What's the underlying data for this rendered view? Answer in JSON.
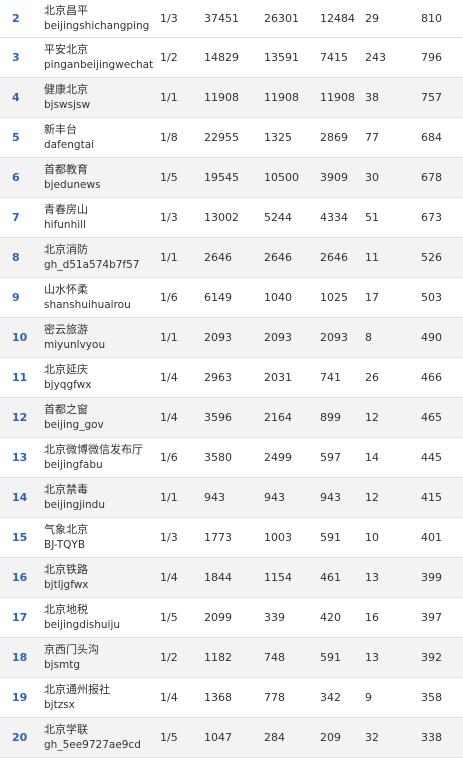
{
  "rows": [
    {
      "rank": "2",
      "name": "北京昌平",
      "id": "beijingshichangping",
      "ratio": "1/3",
      "total_reads": "37451",
      "headline_reads": "26301",
      "avg_reads": "12484",
      "likes": "29",
      "index": "810"
    },
    {
      "rank": "3",
      "name": "平安北京",
      "id": "pinganbeijingwechat",
      "ratio": "1/2",
      "total_reads": "14829",
      "headline_reads": "13591",
      "avg_reads": "7415",
      "likes": "243",
      "index": "796"
    },
    {
      "rank": "4",
      "name": "健康北京",
      "id": "bjswsjsw",
      "ratio": "1/1",
      "total_reads": "11908",
      "headline_reads": "11908",
      "avg_reads": "11908",
      "likes": "38",
      "index": "757"
    },
    {
      "rank": "5",
      "name": "新丰台",
      "id": "dafengtai",
      "ratio": "1/8",
      "total_reads": "22955",
      "headline_reads": "1325",
      "avg_reads": "2869",
      "likes": "77",
      "index": "684"
    },
    {
      "rank": "6",
      "name": "首都教育",
      "id": "bjedunews",
      "ratio": "1/5",
      "total_reads": "19545",
      "headline_reads": "10500",
      "avg_reads": "3909",
      "likes": "30",
      "index": "678"
    },
    {
      "rank": "7",
      "name": "青春房山",
      "id": "hifunhill",
      "ratio": "1/3",
      "total_reads": "13002",
      "headline_reads": "5244",
      "avg_reads": "4334",
      "likes": "51",
      "index": "673"
    },
    {
      "rank": "8",
      "name": "北京消防",
      "id": "gh_d51a574b7f57",
      "ratio": "1/1",
      "total_reads": "2646",
      "headline_reads": "2646",
      "avg_reads": "2646",
      "likes": "11",
      "index": "526"
    },
    {
      "rank": "9",
      "name": "山水怀柔",
      "id": "shanshuihuairou",
      "ratio": "1/6",
      "total_reads": "6149",
      "headline_reads": "1040",
      "avg_reads": "1025",
      "likes": "17",
      "index": "503"
    },
    {
      "rank": "10",
      "name": "密云旅游",
      "id": "miyunlvyou",
      "ratio": "1/1",
      "total_reads": "2093",
      "headline_reads": "2093",
      "avg_reads": "2093",
      "likes": "8",
      "index": "490"
    },
    {
      "rank": "11",
      "name": "北京延庆",
      "id": "bjyqgfwx",
      "ratio": "1/4",
      "total_reads": "2963",
      "headline_reads": "2031",
      "avg_reads": "741",
      "likes": "26",
      "index": "466"
    },
    {
      "rank": "12",
      "name": "首都之窗",
      "id": "beijing_gov",
      "ratio": "1/4",
      "total_reads": "3596",
      "headline_reads": "2164",
      "avg_reads": "899",
      "likes": "12",
      "index": "465"
    },
    {
      "rank": "13",
      "name": "北京微博微信发布厅",
      "id": "beijingfabu",
      "ratio": "1/6",
      "total_reads": "3580",
      "headline_reads": "2499",
      "avg_reads": "597",
      "likes": "14",
      "index": "445"
    },
    {
      "rank": "14",
      "name": "北京禁毒",
      "id": "beijingjindu",
      "ratio": "1/1",
      "total_reads": "943",
      "headline_reads": "943",
      "avg_reads": "943",
      "likes": "12",
      "index": "415"
    },
    {
      "rank": "15",
      "name": "气象北京",
      "id": "BJ-TQYB",
      "ratio": "1/3",
      "total_reads": "1773",
      "headline_reads": "1003",
      "avg_reads": "591",
      "likes": "10",
      "index": "401"
    },
    {
      "rank": "16",
      "name": "北京铁路",
      "id": "bjtljgfwx",
      "ratio": "1/4",
      "total_reads": "1844",
      "headline_reads": "1154",
      "avg_reads": "461",
      "likes": "13",
      "index": "399"
    },
    {
      "rank": "17",
      "name": "北京地税",
      "id": "beijingdishuiju",
      "ratio": "1/5",
      "total_reads": "2099",
      "headline_reads": "339",
      "avg_reads": "420",
      "likes": "16",
      "index": "397"
    },
    {
      "rank": "18",
      "name": "京西门头沟",
      "id": "bjsmtg",
      "ratio": "1/2",
      "total_reads": "1182",
      "headline_reads": "748",
      "avg_reads": "591",
      "likes": "13",
      "index": "392"
    },
    {
      "rank": "19",
      "name": "北京通州报社",
      "id": "bjtzsx",
      "ratio": "1/4",
      "total_reads": "1368",
      "headline_reads": "778",
      "avg_reads": "342",
      "likes": "9",
      "index": "358"
    },
    {
      "rank": "20",
      "name": "北京学联",
      "id": "gh_5ee9727ae9cd",
      "ratio": "1/5",
      "total_reads": "1047",
      "headline_reads": "284",
      "avg_reads": "209",
      "likes": "32",
      "index": "338"
    }
  ]
}
